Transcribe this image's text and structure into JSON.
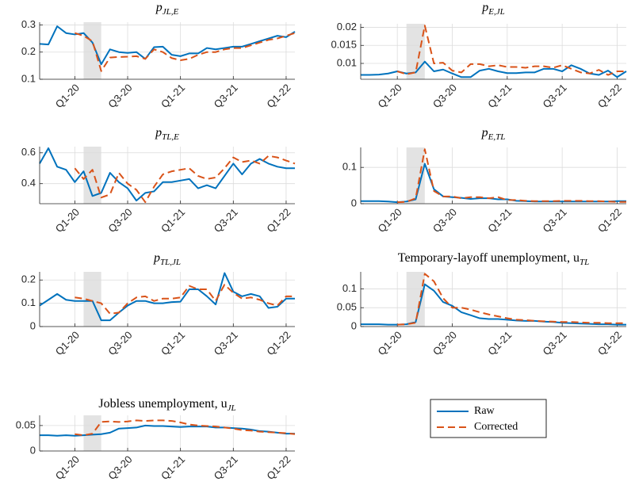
{
  "chart_data": [
    {
      "type": "line",
      "title": "p",
      "title_sub": "JL,E",
      "x": [
        2019.667,
        2019.75,
        2019.833,
        2019.917,
        2020,
        2020.083,
        2020.167,
        2020.25,
        2020.333,
        2020.417,
        2020.5,
        2020.583,
        2020.667,
        2020.75,
        2020.833,
        2020.917,
        2021,
        2021.083,
        2021.167,
        2021.25,
        2021.333,
        2021.417,
        2021.5,
        2021.583,
        2021.667,
        2021.75,
        2021.833,
        2021.917,
        2022,
        2022.083
      ],
      "xlim": [
        2019.667,
        2022.083
      ],
      "xticks": [
        {
          "value": 2020,
          "label": "Q1-20"
        },
        {
          "value": 2020.5,
          "label": "Q3-20"
        },
        {
          "value": 2021,
          "label": "Q1-21"
        },
        {
          "value": 2021.5,
          "label": "Q3-21"
        },
        {
          "value": 2022,
          "label": "Q1-22"
        }
      ],
      "ylim": [
        0.1,
        0.31
      ],
      "yticks": [
        0.1,
        0.2,
        0.3
      ],
      "grid": true,
      "shade": [
        2020.083,
        2020.25
      ],
      "series": [
        {
          "name": "Raw",
          "color": "#0072bd",
          "dashed": false,
          "values": [
            0.23,
            0.228,
            0.295,
            0.27,
            0.265,
            0.27,
            0.235,
            0.155,
            0.21,
            0.2,
            0.197,
            0.2,
            0.175,
            0.218,
            0.22,
            0.19,
            0.185,
            0.195,
            0.195,
            0.215,
            0.21,
            0.215,
            0.22,
            0.22,
            0.23,
            0.24,
            0.25,
            0.26,
            0.255,
            0.275
          ]
        },
        {
          "name": "Corrected",
          "color": "#d95319",
          "dashed": true,
          "values": [
            null,
            null,
            null,
            null,
            0.27,
            0.26,
            0.24,
            0.13,
            0.18,
            0.182,
            0.183,
            0.185,
            0.175,
            0.21,
            0.2,
            0.178,
            0.17,
            0.175,
            0.19,
            0.2,
            0.2,
            0.21,
            0.215,
            0.215,
            0.225,
            0.235,
            0.245,
            0.25,
            0.26,
            0.27
          ]
        }
      ]
    },
    {
      "type": "line",
      "title": "p",
      "title_sub": "E,JL",
      "x": [
        2019.667,
        2019.75,
        2019.833,
        2019.917,
        2020,
        2020.083,
        2020.167,
        2020.25,
        2020.333,
        2020.417,
        2020.5,
        2020.583,
        2020.667,
        2020.75,
        2020.833,
        2020.917,
        2021,
        2021.083,
        2021.167,
        2021.25,
        2021.333,
        2021.417,
        2021.5,
        2021.583,
        2021.667,
        2021.75,
        2021.833,
        2021.917,
        2022,
        2022.083
      ],
      "xlim": [
        2019.667,
        2022.083
      ],
      "xticks": [
        {
          "value": 2020,
          "label": "Q1-20"
        },
        {
          "value": 2020.5,
          "label": "Q3-20"
        },
        {
          "value": 2021,
          "label": "Q1-21"
        },
        {
          "value": 2021.5,
          "label": "Q3-21"
        },
        {
          "value": 2022,
          "label": "Q1-22"
        }
      ],
      "ylim": [
        0.0056,
        0.021
      ],
      "yticks": [
        0.01,
        0.015,
        0.02
      ],
      "grid": true,
      "shade": [
        2020.083,
        2020.25
      ],
      "series": [
        {
          "name": "Raw",
          "color": "#0072bd",
          "dashed": false,
          "values": [
            0.0068,
            0.0068,
            0.0069,
            0.0072,
            0.0078,
            0.0072,
            0.0075,
            0.0105,
            0.0078,
            0.0083,
            0.0072,
            0.0062,
            0.0062,
            0.008,
            0.0085,
            0.0078,
            0.0073,
            0.0073,
            0.0075,
            0.0075,
            0.0085,
            0.0085,
            0.0078,
            0.0095,
            0.0085,
            0.0072,
            0.0068,
            0.008,
            0.0062,
            0.0078
          ]
        },
        {
          "name": "Corrected",
          "color": "#d95319",
          "dashed": true,
          "values": [
            null,
            null,
            null,
            null,
            0.0078,
            0.007,
            0.0075,
            0.0205,
            0.01,
            0.0102,
            0.008,
            0.0075,
            0.0098,
            0.0098,
            0.0092,
            0.0095,
            0.009,
            0.009,
            0.0088,
            0.0092,
            0.0092,
            0.0088,
            0.0095,
            0.0085,
            0.0075,
            0.0072,
            0.0082,
            0.0068,
            0.0078,
            0.0078
          ]
        }
      ]
    },
    {
      "type": "line",
      "title": "p",
      "title_sub": "TL,E",
      "x": [
        2019.667,
        2019.75,
        2019.833,
        2019.917,
        2020,
        2020.083,
        2020.167,
        2020.25,
        2020.333,
        2020.417,
        2020.5,
        2020.583,
        2020.667,
        2020.75,
        2020.833,
        2020.917,
        2021,
        2021.083,
        2021.167,
        2021.25,
        2021.333,
        2021.417,
        2021.5,
        2021.583,
        2021.667,
        2021.75,
        2021.833,
        2021.917,
        2022,
        2022.083
      ],
      "xlim": [
        2019.667,
        2022.083
      ],
      "xticks": [
        {
          "value": 2020,
          "label": "Q1-20"
        },
        {
          "value": 2020.5,
          "label": "Q3-20"
        },
        {
          "value": 2021,
          "label": "Q1-21"
        },
        {
          "value": 2021.5,
          "label": "Q3-21"
        },
        {
          "value": 2022,
          "label": "Q1-22"
        }
      ],
      "ylim": [
        0.27,
        0.64
      ],
      "yticks": [
        0.4,
        0.6
      ],
      "grid": true,
      "shade": [
        2020.083,
        2020.25
      ],
      "series": [
        {
          "name": "Raw",
          "color": "#0072bd",
          "dashed": false,
          "values": [
            0.53,
            0.63,
            0.51,
            0.49,
            0.41,
            0.48,
            0.32,
            0.34,
            0.47,
            0.41,
            0.37,
            0.29,
            0.34,
            0.35,
            0.41,
            0.41,
            0.42,
            0.43,
            0.37,
            0.39,
            0.37,
            0.45,
            0.53,
            0.46,
            0.53,
            0.56,
            0.53,
            0.51,
            0.5,
            0.5
          ]
        },
        {
          "name": "Corrected",
          "color": "#d95319",
          "dashed": true,
          "values": [
            null,
            null,
            null,
            null,
            0.5,
            0.43,
            0.49,
            0.31,
            0.33,
            0.47,
            0.4,
            0.36,
            0.28,
            0.38,
            0.46,
            0.48,
            0.49,
            0.5,
            0.45,
            0.43,
            0.44,
            0.5,
            0.57,
            0.54,
            0.55,
            0.53,
            0.58,
            0.57,
            0.55,
            0.53
          ]
        }
      ]
    },
    {
      "type": "line",
      "title": "p",
      "title_sub": "E,TL",
      "x": [
        2019.667,
        2019.75,
        2019.833,
        2019.917,
        2020,
        2020.083,
        2020.167,
        2020.25,
        2020.333,
        2020.417,
        2020.5,
        2020.583,
        2020.667,
        2020.75,
        2020.833,
        2020.917,
        2021,
        2021.083,
        2021.167,
        2021.25,
        2021.333,
        2021.417,
        2021.5,
        2021.583,
        2021.667,
        2021.75,
        2021.833,
        2021.917,
        2022,
        2022.083
      ],
      "xlim": [
        2019.667,
        2022.083
      ],
      "xticks": [
        {
          "value": 2020,
          "label": "Q1-20"
        },
        {
          "value": 2020.5,
          "label": "Q3-20"
        },
        {
          "value": 2021,
          "label": "Q1-21"
        },
        {
          "value": 2021.5,
          "label": "Q3-21"
        },
        {
          "value": 2022,
          "label": "Q1-22"
        }
      ],
      "ylim": [
        0,
        0.155
      ],
      "yticks": [
        0,
        0.1
      ],
      "grid": true,
      "shade": [
        2020.083,
        2020.25
      ],
      "series": [
        {
          "name": "Raw",
          "color": "#0072bd",
          "dashed": false,
          "values": [
            0.007,
            0.007,
            0.007,
            0.006,
            0.004,
            0.006,
            0.012,
            0.11,
            0.04,
            0.02,
            0.018,
            0.016,
            0.013,
            0.015,
            0.015,
            0.012,
            0.012,
            0.008,
            0.007,
            0.006,
            0.006,
            0.006,
            0.006,
            0.006,
            0.006,
            0.006,
            0.006,
            0.006,
            0.007,
            0.007
          ]
        },
        {
          "name": "Corrected",
          "color": "#d95319",
          "dashed": true,
          "values": [
            null,
            null,
            null,
            null,
            0.004,
            0.005,
            0.015,
            0.15,
            0.035,
            0.02,
            0.02,
            0.015,
            0.018,
            0.018,
            0.015,
            0.018,
            0.01,
            0.01,
            0.008,
            0.007,
            0.007,
            0.007,
            0.008,
            0.008,
            0.008,
            0.007,
            0.007,
            0.006,
            0.005,
            0.005
          ]
        }
      ]
    },
    {
      "type": "line",
      "title": "p",
      "title_sub": "TL,JL",
      "x": [
        2019.667,
        2019.75,
        2019.833,
        2019.917,
        2020,
        2020.083,
        2020.167,
        2020.25,
        2020.333,
        2020.417,
        2020.5,
        2020.583,
        2020.667,
        2020.75,
        2020.833,
        2020.917,
        2021,
        2021.083,
        2021.167,
        2021.25,
        2021.333,
        2021.417,
        2021.5,
        2021.583,
        2021.667,
        2021.75,
        2021.833,
        2021.917,
        2022,
        2022.083
      ],
      "xlim": [
        2019.667,
        2022.083
      ],
      "xticks": [
        {
          "value": 2020,
          "label": "Q1-20"
        },
        {
          "value": 2020.5,
          "label": "Q3-20"
        },
        {
          "value": 2021,
          "label": "Q1-21"
        },
        {
          "value": 2021.5,
          "label": "Q3-21"
        },
        {
          "value": 2022,
          "label": "Q1-22"
        }
      ],
      "ylim": [
        0,
        0.235
      ],
      "yticks": [
        0,
        0.1,
        0.2
      ],
      "grid": true,
      "shade": [
        2020.083,
        2020.25
      ],
      "series": [
        {
          "name": "Raw",
          "color": "#0072bd",
          "dashed": false,
          "values": [
            0.09,
            0.115,
            0.14,
            0.115,
            0.11,
            0.11,
            0.11,
            0.027,
            0.027,
            0.06,
            0.09,
            0.11,
            0.11,
            0.1,
            0.1,
            0.105,
            0.107,
            0.16,
            0.16,
            0.13,
            0.095,
            0.23,
            0.15,
            0.13,
            0.14,
            0.13,
            0.08,
            0.085,
            0.12,
            0.12
          ]
        },
        {
          "name": "Corrected",
          "color": "#d95319",
          "dashed": true,
          "values": [
            null,
            null,
            null,
            null,
            0.125,
            0.12,
            0.11,
            0.1,
            0.055,
            0.06,
            0.1,
            0.125,
            0.13,
            0.11,
            0.12,
            0.12,
            0.125,
            0.175,
            0.16,
            0.16,
            0.11,
            0.18,
            0.145,
            0.12,
            0.125,
            0.115,
            0.1,
            0.09,
            0.13,
            0.13
          ]
        }
      ]
    },
    {
      "type": "line",
      "title": "Temporary-layoff unemployment, u",
      "title_sub": "TL",
      "x": [
        2019.667,
        2019.75,
        2019.833,
        2019.917,
        2020,
        2020.083,
        2020.167,
        2020.25,
        2020.333,
        2020.417,
        2020.5,
        2020.583,
        2020.667,
        2020.75,
        2020.833,
        2020.917,
        2021,
        2021.083,
        2021.167,
        2021.25,
        2021.333,
        2021.417,
        2021.5,
        2021.583,
        2021.667,
        2021.75,
        2021.833,
        2021.917,
        2022,
        2022.083
      ],
      "xlim": [
        2019.667,
        2022.083
      ],
      "xticks": [
        {
          "value": 2020,
          "label": "Q1-20"
        },
        {
          "value": 2020.5,
          "label": "Q3-20"
        },
        {
          "value": 2021,
          "label": "Q1-21"
        },
        {
          "value": 2021.5,
          "label": "Q3-21"
        },
        {
          "value": 2022,
          "label": "Q1-22"
        }
      ],
      "ylim": [
        0,
        0.145
      ],
      "yticks": [
        0,
        0.05,
        0.1
      ],
      "grid": true,
      "shade": [
        2020.083,
        2020.25
      ],
      "series": [
        {
          "name": "Raw",
          "color": "#0072bd",
          "dashed": false,
          "values": [
            0.006,
            0.006,
            0.006,
            0.005,
            0.005,
            0.006,
            0.012,
            0.112,
            0.095,
            0.065,
            0.055,
            0.038,
            0.03,
            0.022,
            0.02,
            0.02,
            0.018,
            0.016,
            0.015,
            0.015,
            0.013,
            0.012,
            0.01,
            0.009,
            0.008,
            0.007,
            0.006,
            0.006,
            0.005,
            0.005
          ]
        },
        {
          "name": "Corrected",
          "color": "#d95319",
          "dashed": true,
          "values": [
            null,
            null,
            null,
            null,
            0.005,
            0.006,
            0.01,
            0.14,
            0.12,
            0.075,
            0.05,
            0.05,
            0.045,
            0.038,
            0.032,
            0.027,
            0.022,
            0.018,
            0.017,
            0.015,
            0.014,
            0.013,
            0.012,
            0.012,
            0.011,
            0.01,
            0.01,
            0.009,
            0.009,
            0.009
          ]
        }
      ]
    },
    {
      "type": "line",
      "title": "Jobless unemployment, u",
      "title_sub": "JL",
      "x": [
        2019.667,
        2019.75,
        2019.833,
        2019.917,
        2020,
        2020.083,
        2020.167,
        2020.25,
        2020.333,
        2020.417,
        2020.5,
        2020.583,
        2020.667,
        2020.75,
        2020.833,
        2020.917,
        2021,
        2021.083,
        2021.167,
        2021.25,
        2021.333,
        2021.417,
        2021.5,
        2021.583,
        2021.667,
        2021.75,
        2021.833,
        2021.917,
        2022,
        2022.083
      ],
      "xlim": [
        2019.667,
        2022.083
      ],
      "xticks": [
        {
          "value": 2020,
          "label": "Q1-20"
        },
        {
          "value": 2020.5,
          "label": "Q3-20"
        },
        {
          "value": 2021,
          "label": "Q1-21"
        },
        {
          "value": 2021.5,
          "label": "Q3-21"
        },
        {
          "value": 2022,
          "label": "Q1-22"
        }
      ],
      "ylim": [
        0,
        0.07
      ],
      "yticks": [
        0,
        0.05
      ],
      "grid": true,
      "shade": [
        2020.083,
        2020.25
      ],
      "series": [
        {
          "name": "Raw",
          "color": "#0072bd",
          "dashed": false,
          "values": [
            0.031,
            0.031,
            0.03,
            0.031,
            0.03,
            0.031,
            0.032,
            0.033,
            0.036,
            0.044,
            0.045,
            0.046,
            0.05,
            0.049,
            0.049,
            0.048,
            0.047,
            0.048,
            0.048,
            0.048,
            0.046,
            0.046,
            0.045,
            0.044,
            0.042,
            0.039,
            0.038,
            0.036,
            0.034,
            0.034
          ]
        },
        {
          "name": "Corrected",
          "color": "#d95319",
          "dashed": true,
          "values": [
            null,
            null,
            null,
            null,
            0.033,
            0.031,
            0.034,
            0.057,
            0.058,
            0.057,
            0.058,
            0.06,
            0.059,
            0.06,
            0.06,
            0.059,
            0.056,
            0.052,
            0.05,
            0.049,
            0.048,
            0.046,
            0.044,
            0.041,
            0.04,
            0.038,
            0.037,
            0.036,
            0.035,
            0.033
          ]
        }
      ]
    }
  ]
}
